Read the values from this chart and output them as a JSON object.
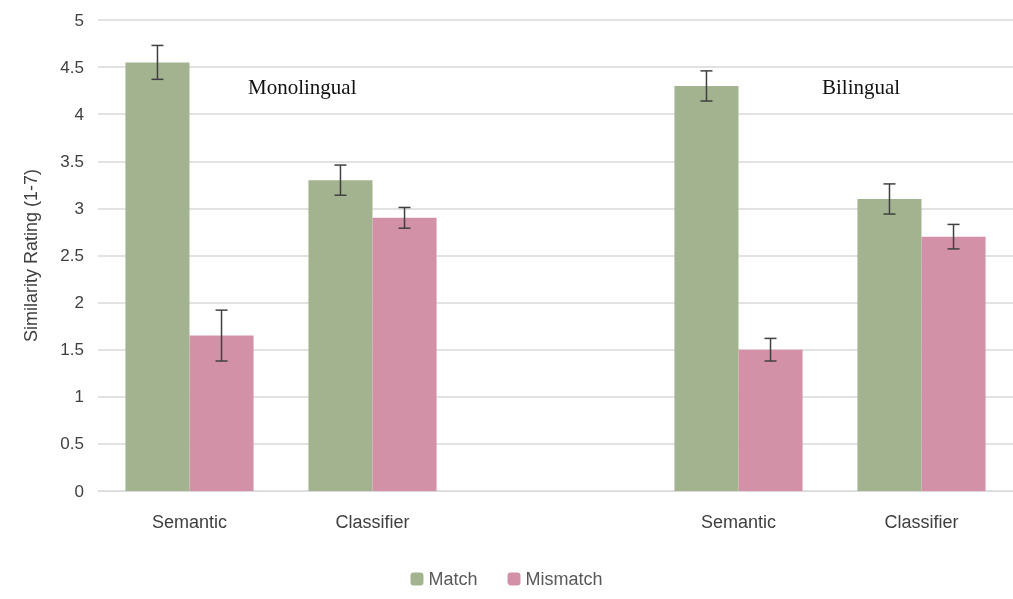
{
  "chart_data": {
    "type": "bar",
    "ylabel": "Similarity Rating (1-7)",
    "categories": [
      "Semantic",
      "Classifier",
      null,
      "Semantic",
      "Classifier"
    ],
    "series": [
      {
        "name": "Match",
        "color": "#a3b38f",
        "values": [
          4.55,
          3.3,
          null,
          4.3,
          3.1
        ],
        "errors": [
          0.18,
          0.16,
          null,
          0.16,
          0.16
        ]
      },
      {
        "name": "Mismatch",
        "color": "#d291a7",
        "values": [
          1.65,
          2.9,
          null,
          1.5,
          2.7
        ],
        "errors": [
          0.27,
          0.11,
          null,
          0.12,
          0.13
        ]
      }
    ],
    "ylim": [
      0,
      5
    ],
    "yticks": [
      0,
      0.5,
      1,
      1.5,
      2,
      2.5,
      3,
      3.5,
      4,
      4.5,
      5
    ],
    "grid": "y",
    "legend": "bottom",
    "annotations": [
      "Monolingual",
      "Bilingual"
    ]
  }
}
